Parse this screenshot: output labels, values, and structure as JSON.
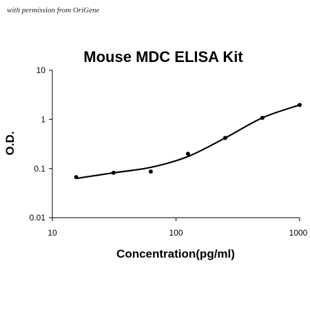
{
  "watermark": "with permission from OriGene",
  "chart_data": {
    "type": "scatter",
    "title": "Mouse MDC ELISA Kit",
    "xlabel": "Concentration(pg/ml)",
    "ylabel": "O.D.",
    "x_scale": "log",
    "y_scale": "log",
    "xlim": [
      10,
      1000
    ],
    "ylim": [
      0.01,
      10
    ],
    "x_ticks": [
      "10",
      "100",
      "1000"
    ],
    "y_ticks": [
      "10",
      "1",
      "0.1",
      "0.01"
    ],
    "grid": false,
    "legend": "none",
    "series": [
      {
        "x": [
          15.6,
          31.25,
          62.5,
          125,
          250,
          500,
          1000
        ],
        "y": [
          0.067,
          0.082,
          0.087,
          0.2,
          0.42,
          1.08,
          1.97
        ]
      }
    ],
    "fit_curve": true
  },
  "colors": {
    "marker": "#000000",
    "curve": "#000000",
    "axis": "#000000"
  }
}
